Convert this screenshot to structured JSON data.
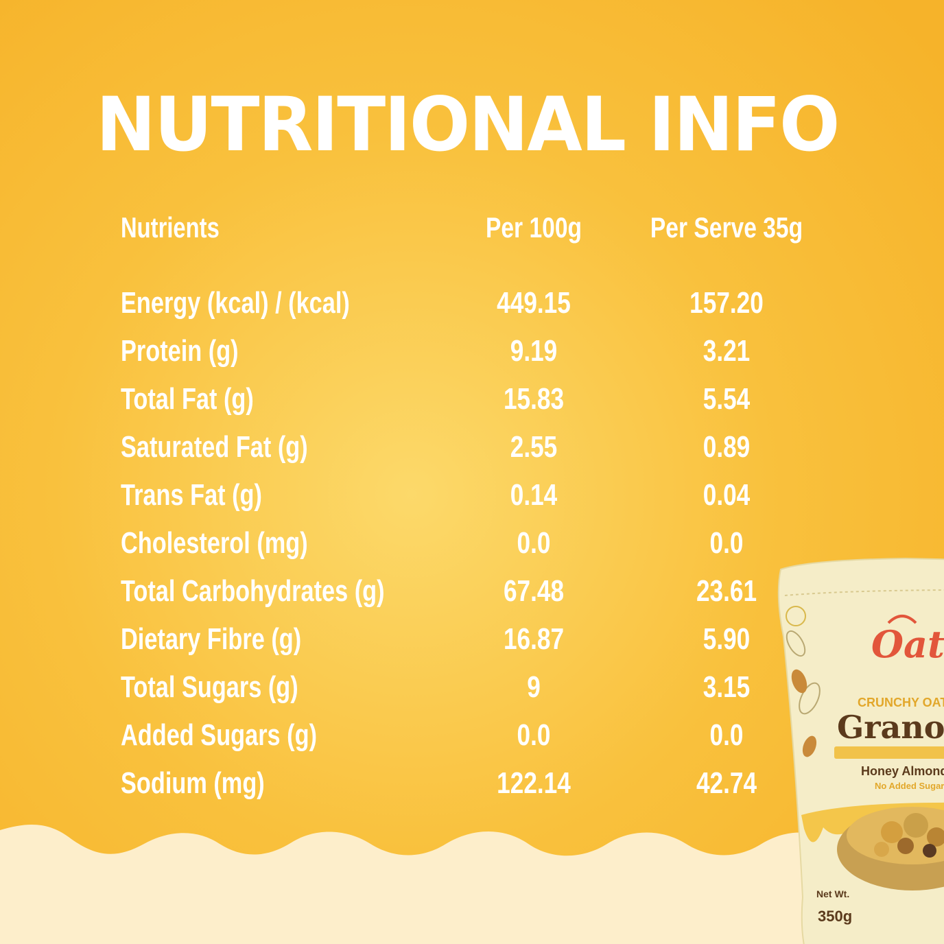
{
  "title": "NUTRITIONAL INFO",
  "table": {
    "headers": {
      "nutrient": "Nutrients",
      "per_100g": "Per 100g",
      "per_serve": "Per Serve 35g"
    },
    "rows": [
      {
        "name": "Energy (kcal) / (kcal)",
        "per_100g": "449.15",
        "per_serve": "157.20"
      },
      {
        "name": "Protein (g)",
        "per_100g": "9.19",
        "per_serve": "3.21"
      },
      {
        "name": "Total Fat (g)",
        "per_100g": "15.83",
        "per_serve": "5.54"
      },
      {
        "name": "Saturated Fat (g)",
        "per_100g": "2.55",
        "per_serve": "0.89"
      },
      {
        "name": "Trans Fat (g)",
        "per_100g": "0.14",
        "per_serve": "0.04"
      },
      {
        "name": "Cholesterol (mg)",
        "per_100g": "0.0",
        "per_serve": "0.0"
      },
      {
        "name": "Total Carbohydrates (g)",
        "per_100g": "67.48",
        "per_serve": "23.61"
      },
      {
        "name": "Dietary Fibre (g)",
        "per_100g": "16.87",
        "per_serve": "5.90"
      },
      {
        "name": "Total Sugars (g)",
        "per_100g": "9",
        "per_serve": "3.15"
      },
      {
        "name": "Added Sugars (g)",
        "per_100g": "0.0",
        "per_serve": "0.0"
      },
      {
        "name": "Sodium (mg)",
        "per_100g": "122.14",
        "per_serve": "42.74"
      }
    ]
  },
  "product": {
    "brand": "Oatee",
    "subtitle": "CRUNCHY OATS",
    "name": "Granola",
    "flavor": "Honey Almond",
    "claim": "No Added Sugar",
    "net_wt_label": "Net Wt.",
    "weight": "350g"
  },
  "colors": {
    "background_outer": "#f6b32a",
    "background_inner": "#fcd96a",
    "wave": "#fdeecb",
    "text": "#ffffff"
  }
}
